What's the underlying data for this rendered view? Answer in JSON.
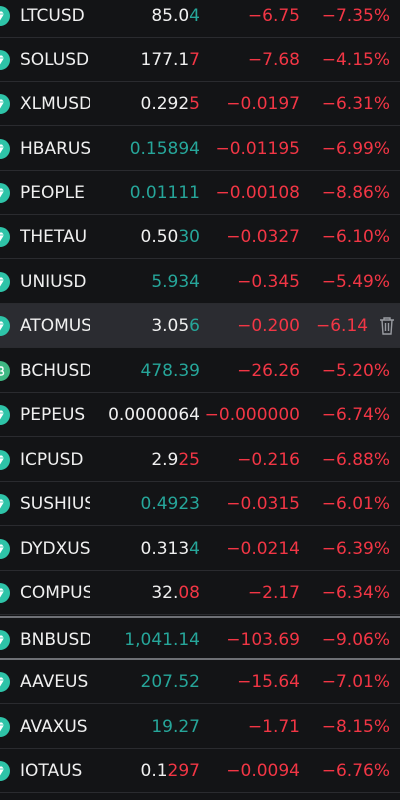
{
  "rows": [
    {
      "symbol": "LTCUSD",
      "last_main": "85.0",
      "last_tail": "4",
      "tail_color": "g",
      "main_color": "w",
      "change": "−6.75",
      "pct": "−7.35%"
    },
    {
      "symbol": "SOLUSD",
      "last_main": "177.1",
      "last_tail": "7",
      "tail_color": "r",
      "main_color": "w",
      "change": "−7.68",
      "pct": "−4.15%"
    },
    {
      "symbol": "XLMUSD",
      "last_main": "0.292",
      "last_tail": "5",
      "tail_color": "r",
      "main_color": "w",
      "change": "−0.0197",
      "pct": "−6.31%"
    },
    {
      "symbol": "HBARUS",
      "last_main": "0.15894",
      "last_tail": "",
      "tail_color": "g",
      "main_color": "g",
      "change": "−0.01195",
      "pct": "−6.99%"
    },
    {
      "symbol": "PEOPLE",
      "last_main": "0.01111",
      "last_tail": "",
      "tail_color": "g",
      "main_color": "g",
      "change": "−0.00108",
      "pct": "−8.86%"
    },
    {
      "symbol": "THETAU",
      "last_main": "0.50",
      "last_tail": "30",
      "tail_color": "g",
      "main_color": "w",
      "change": "−0.0327",
      "pct": "−6.10%"
    },
    {
      "symbol": "UNIUSD",
      "last_main": "5.934",
      "last_tail": "",
      "tail_color": "g",
      "main_color": "g",
      "change": "−0.345",
      "pct": "−5.49%"
    },
    {
      "symbol": "ATOMUS",
      "last_main": "3.05",
      "last_tail": "6",
      "tail_color": "g",
      "main_color": "w",
      "change": "−0.200",
      "pct": "−6.14",
      "selected": true
    },
    {
      "symbol": "BCHUSD",
      "last_main": "478.39",
      "last_tail": "",
      "tail_color": "g",
      "main_color": "g",
      "change": "−26.26",
      "pct": "−5.20%",
      "icon": "bch"
    },
    {
      "symbol": "PEPEUS",
      "last_main": "0.0000064",
      "last_tail": "",
      "tail_color": "w",
      "main_color": "w",
      "change": "−0.000000",
      "pct": "−6.74%"
    },
    {
      "symbol": "ICPUSD",
      "last_main": "2.9",
      "last_tail": "25",
      "tail_color": "r",
      "main_color": "w",
      "change": "−0.216",
      "pct": "−6.88%"
    },
    {
      "symbol": "SUSHIUS",
      "last_main": "0.4923",
      "last_tail": "",
      "tail_color": "g",
      "main_color": "g",
      "change": "−0.0315",
      "pct": "−6.01%"
    },
    {
      "symbol": "DYDXUS",
      "last_main": "0.313",
      "last_tail": "4",
      "tail_color": "g",
      "main_color": "w",
      "change": "−0.0214",
      "pct": "−6.39%"
    },
    {
      "symbol": "COMPUS",
      "last_main": "32.",
      "last_tail": "08",
      "tail_color": "r",
      "main_color": "w",
      "change": "−2.17",
      "pct": "−6.34%"
    },
    {
      "symbol": "BNBUSD",
      "last_main": "1,041.14",
      "last_tail": "",
      "tail_color": "g",
      "main_color": "g",
      "change": "−103.69",
      "pct": "−9.06%",
      "divider": true
    },
    {
      "symbol": "AAVEUS",
      "last_main": "207.52",
      "last_tail": "",
      "tail_color": "g",
      "main_color": "g",
      "change": "−15.64",
      "pct": "−7.01%"
    },
    {
      "symbol": "AVAXUS",
      "last_main": "19.27",
      "last_tail": "",
      "tail_color": "g",
      "main_color": "g",
      "change": "−1.71",
      "pct": "−8.15%"
    },
    {
      "symbol": "IOTAUS",
      "last_main": "0.1",
      "last_tail": "297",
      "tail_color": "r",
      "main_color": "w",
      "change": "−0.0094",
      "pct": "−6.76%"
    }
  ],
  "colors": {
    "green": "#26a69a",
    "red": "#f23645",
    "text": "#f0f0f0",
    "bg": "#131416",
    "selected": "#2b2c31"
  },
  "icons": {
    "row_icon": "crypto-coin-icon",
    "bch_icon": "bitcoin-cash-icon",
    "trash": "trash-icon"
  }
}
